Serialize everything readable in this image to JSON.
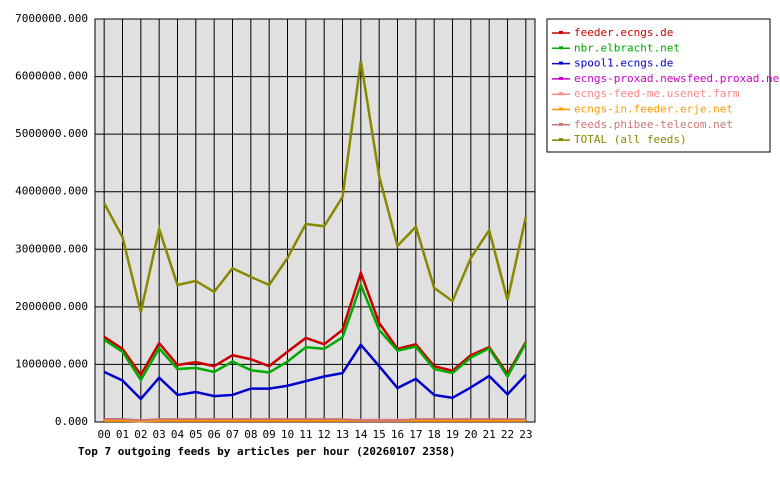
{
  "chart_data": {
    "type": "line",
    "title": "Top 7 outgoing feeds by articles per hour (20260107 2358)",
    "categories": [
      "00",
      "01",
      "02",
      "03",
      "04",
      "05",
      "06",
      "07",
      "08",
      "09",
      "10",
      "11",
      "12",
      "13",
      "14",
      "15",
      "16",
      "17",
      "18",
      "19",
      "20",
      "21",
      "22",
      "23"
    ],
    "ylim": [
      0,
      7000000
    ],
    "yticks": [
      {
        "value": 0,
        "label": "0.000"
      },
      {
        "value": 1000000,
        "label": "1000000.000"
      },
      {
        "value": 2000000,
        "label": "2000000.000"
      },
      {
        "value": 3000000,
        "label": "3000000.000"
      },
      {
        "value": 4000000,
        "label": "4000000.000"
      },
      {
        "value": 5000000,
        "label": "5000000.000"
      },
      {
        "value": 6000000,
        "label": "6000000.000"
      },
      {
        "value": 7000000,
        "label": "7000000.000"
      }
    ],
    "grid": true,
    "series": [
      {
        "name": "feeder.ecngs.de",
        "color": "#cc0000",
        "values": [
          1480000,
          1270000,
          820000,
          1370000,
          990000,
          1040000,
          970000,
          1160000,
          1090000,
          970000,
          1220000,
          1460000,
          1350000,
          1600000,
          2590000,
          1720000,
          1270000,
          1350000,
          970000,
          890000,
          1160000,
          1300000,
          830000,
          1390000
        ]
      },
      {
        "name": "nbr.elbracht.net",
        "color": "#00aa00",
        "values": [
          1430000,
          1220000,
          730000,
          1280000,
          920000,
          940000,
          870000,
          1050000,
          900000,
          860000,
          1050000,
          1300000,
          1270000,
          1470000,
          2380000,
          1600000,
          1240000,
          1310000,
          920000,
          850000,
          1120000,
          1280000,
          790000,
          1370000
        ]
      },
      {
        "name": "spool1.ecngs.de",
        "color": "#0000cc",
        "values": [
          870000,
          720000,
          400000,
          770000,
          470000,
          520000,
          450000,
          470000,
          580000,
          580000,
          630000,
          710000,
          790000,
          850000,
          1340000,
          970000,
          590000,
          750000,
          470000,
          420000,
          600000,
          800000,
          480000,
          820000
        ]
      },
      {
        "name": "ecngs-proxad.newsfeed.proxad.net",
        "color": "#cc00cc",
        "values": [
          50000,
          50000,
          20000,
          20000,
          30000,
          30000,
          30000,
          30000,
          30000,
          30000,
          30000,
          30000,
          30000,
          40000,
          20000,
          20000,
          20000,
          30000,
          30000,
          30000,
          30000,
          30000,
          30000,
          30000
        ]
      },
      {
        "name": "ecngs-feed-me.usenet.farm",
        "color": "#ff8888",
        "values": [
          40000,
          40000,
          30000,
          40000,
          40000,
          40000,
          40000,
          40000,
          40000,
          40000,
          40000,
          40000,
          40000,
          40000,
          40000,
          40000,
          40000,
          40000,
          40000,
          40000,
          40000,
          40000,
          40000,
          40000
        ]
      },
      {
        "name": "ecngs-in.feeder.erje.net",
        "color": "#ff9900",
        "values": [
          20000,
          20000,
          10000,
          20000,
          20000,
          20000,
          20000,
          20000,
          20000,
          20000,
          20000,
          20000,
          20000,
          20000,
          20000,
          20000,
          20000,
          20000,
          20000,
          20000,
          20000,
          20000,
          20000,
          20000
        ]
      },
      {
        "name": "feeds.phibee-telecom.net",
        "color": "#cc7777",
        "values": [
          50000,
          50000,
          30000,
          50000,
          50000,
          50000,
          50000,
          50000,
          50000,
          50000,
          50000,
          50000,
          50000,
          50000,
          30000,
          30000,
          30000,
          50000,
          50000,
          50000,
          50000,
          50000,
          50000,
          50000
        ]
      },
      {
        "name": "TOTAL (all feeds)",
        "color": "#888800",
        "values": [
          3800000,
          3210000,
          1910000,
          3350000,
          2380000,
          2450000,
          2260000,
          2670000,
          2520000,
          2380000,
          2850000,
          3440000,
          3400000,
          3910000,
          6270000,
          4270000,
          3060000,
          3390000,
          2330000,
          2100000,
          2850000,
          3330000,
          2120000,
          3560000
        ]
      }
    ]
  }
}
